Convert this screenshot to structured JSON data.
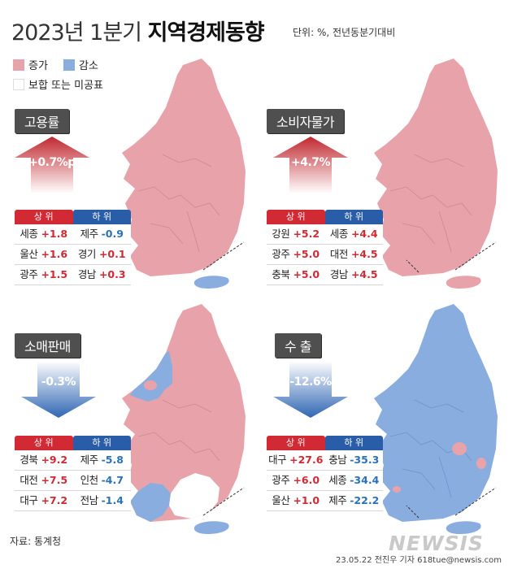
{
  "title": {
    "year_quarter": "2023년 1분기",
    "main": "지역경제동향"
  },
  "unit": "단위: %, 전년동분기대비",
  "legend": [
    {
      "label": "증가",
      "color": "#e8a3aa"
    },
    {
      "label": "감소",
      "color": "#8aaddf"
    },
    {
      "label": "보합 또는 미공표",
      "color": "#ffffff"
    }
  ],
  "panels": [
    {
      "name": "고용률",
      "change": "+0.7%p",
      "direction": "up",
      "header": {
        "up": "상 위",
        "down": "하 위"
      },
      "rows": [
        {
          "up_region": "세종",
          "up_value": "+1.8",
          "down_region": "제주",
          "down_value": "-0.9"
        },
        {
          "up_region": "울산",
          "up_value": "+1.6",
          "down_region": "경기",
          "down_value": "+0.1"
        },
        {
          "up_region": "광주",
          "up_value": "+1.5",
          "down_region": "경남",
          "down_value": "+0.3"
        }
      ]
    },
    {
      "name": "소비자물가",
      "change": "+4.7%",
      "direction": "up",
      "header": {
        "up": "상 위",
        "down": "하 위"
      },
      "rows": [
        {
          "up_region": "강원",
          "up_value": "+5.2",
          "down_region": "세종",
          "down_value": "+4.4"
        },
        {
          "up_region": "광주",
          "up_value": "+5.0",
          "down_region": "대전",
          "down_value": "+4.5"
        },
        {
          "up_region": "충북",
          "up_value": "+5.0",
          "down_region": "경남",
          "down_value": "+4.5"
        }
      ]
    },
    {
      "name": "소매판매",
      "change": "-0.3%",
      "direction": "down",
      "header": {
        "up": "상 위",
        "down": "하 위"
      },
      "rows": [
        {
          "up_region": "경북",
          "up_value": "+9.2",
          "down_region": "제주",
          "down_value": "-5.8"
        },
        {
          "up_region": "대전",
          "up_value": "+7.5",
          "down_region": "인천",
          "down_value": "-4.7"
        },
        {
          "up_region": "대구",
          "up_value": "+7.2",
          "down_region": "전남",
          "down_value": "-1.4"
        }
      ]
    },
    {
      "name": "수 출",
      "change": "-12.6%",
      "direction": "down",
      "header": {
        "up": "상 위",
        "down": "하 위"
      },
      "rows": [
        {
          "up_region": "대구",
          "up_value": "+27.6",
          "down_region": "충남",
          "down_value": "-35.3"
        },
        {
          "up_region": "광주",
          "up_value": "+6.0",
          "down_region": "세종",
          "down_value": "-34.4"
        },
        {
          "up_region": "울산",
          "up_value": "+1.0",
          "down_region": "제주",
          "down_value": "-22.2"
        }
      ]
    }
  ],
  "colors": {
    "increase": "#e8a3aa",
    "decrease": "#8aaddf",
    "up_arrow": "#c0282f",
    "down_arrow": "#2f66b3"
  },
  "source": "자료: 통계청",
  "watermark": "NEWSIS",
  "credit": "23.05.22 전진우 기자 618tue@newsis.com"
}
